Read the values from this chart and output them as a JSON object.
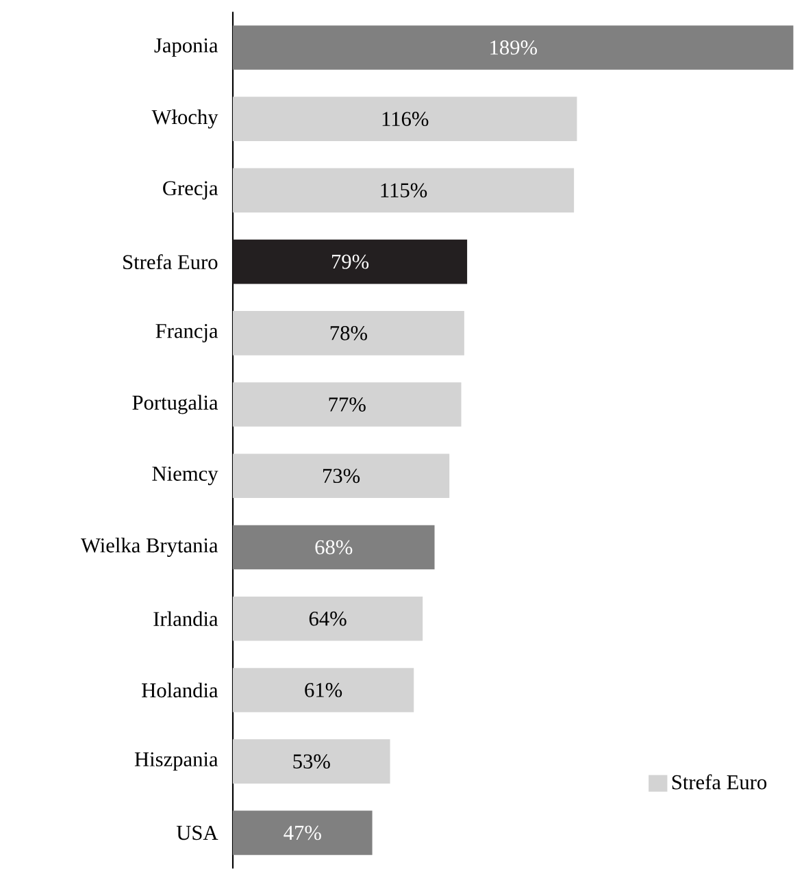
{
  "chart_data": {
    "type": "bar",
    "orientation": "horizontal",
    "categories": [
      "Japonia",
      "Włochy",
      "Grecja",
      "Strefa Euro",
      "Francja",
      "Portugalia",
      "Niemcy",
      "Wielka Brytania",
      "Irlandia",
      "Holandia",
      "Hiszpania",
      "USA"
    ],
    "series": [
      {
        "name": "Strefa Euro",
        "color": "#d3d3d3",
        "values": [
          null,
          116,
          115,
          null,
          78,
          77,
          73,
          null,
          64,
          61,
          53,
          null
        ],
        "value_labels": [
          null,
          "116%",
          "115%",
          null,
          "78%",
          "77%",
          "73%",
          null,
          "64%",
          "61%",
          "53%",
          null
        ]
      },
      {
        "color": "#808080",
        "values": [
          189,
          null,
          null,
          null,
          null,
          null,
          null,
          68,
          null,
          null,
          null,
          47
        ],
        "value_labels": [
          "189%",
          null,
          null,
          null,
          null,
          null,
          null,
          "68%",
          null,
          null,
          null,
          "47%"
        ]
      },
      {
        "color": "#231f20",
        "values": [
          null,
          null,
          null,
          79,
          null,
          null,
          null,
          null,
          null,
          null,
          null,
          null
        ],
        "value_labels": [
          null,
          null,
          null,
          "79%",
          null,
          null,
          null,
          null,
          null,
          null,
          null,
          null
        ]
      }
    ],
    "legend": "bottom right"
  }
}
